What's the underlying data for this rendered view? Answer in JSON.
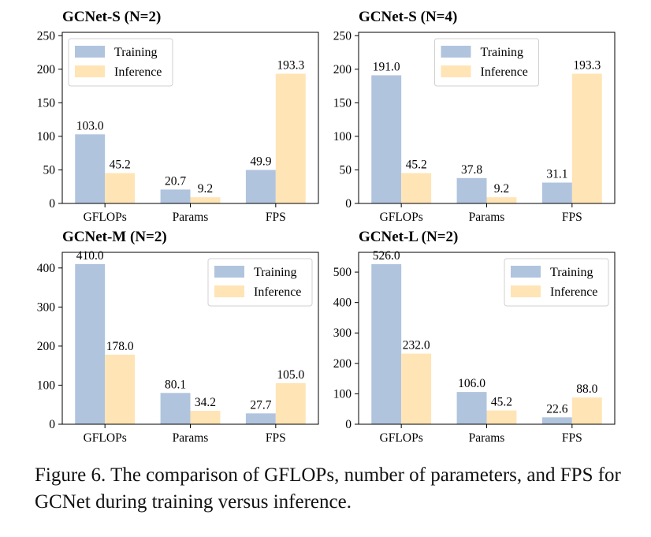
{
  "caption": "Figure 6. The comparison of GFLOPs, number of parameters, and FPS for GCNet during training versus inference.",
  "colors": {
    "training": "#b0c4de",
    "inference": "#ffe4b5"
  },
  "chart_data": [
    {
      "type": "bar",
      "title": "GCNet-S (N=2)",
      "categories": [
        "GFLOPs",
        "Params",
        "FPS"
      ],
      "series": [
        {
          "name": "Training",
          "values": [
            103.0,
            20.7,
            49.9
          ]
        },
        {
          "name": "Inference",
          "values": [
            45.2,
            9.2,
            193.3
          ]
        }
      ],
      "value_labels": [
        [
          "103.0",
          "20.7",
          "49.9"
        ],
        [
          "45.2",
          "9.2",
          "193.3"
        ]
      ],
      "ylim": [
        0,
        255
      ],
      "yticks": [
        0,
        50,
        100,
        150,
        200,
        250
      ],
      "legend": "top-left"
    },
    {
      "type": "bar",
      "title": "GCNet-S (N=4)",
      "categories": [
        "GFLOPs",
        "Params",
        "FPS"
      ],
      "series": [
        {
          "name": "Training",
          "values": [
            191.0,
            37.8,
            31.1
          ]
        },
        {
          "name": "Inference",
          "values": [
            45.2,
            9.2,
            193.3
          ]
        }
      ],
      "value_labels": [
        [
          "191.0",
          "37.8",
          "31.1"
        ],
        [
          "45.2",
          "9.2",
          "193.3"
        ]
      ],
      "ylim": [
        0,
        255
      ],
      "yticks": [
        0,
        50,
        100,
        150,
        200,
        250
      ],
      "legend": "top-center"
    },
    {
      "type": "bar",
      "title": "GCNet-M (N=2)",
      "categories": [
        "GFLOPs",
        "Params",
        "FPS"
      ],
      "series": [
        {
          "name": "Training",
          "values": [
            410.0,
            80.1,
            27.7
          ]
        },
        {
          "name": "Inference",
          "values": [
            178.0,
            34.2,
            105.0
          ]
        }
      ],
      "value_labels": [
        [
          "410.0",
          "80.1",
          "27.7"
        ],
        [
          "178.0",
          "34.2",
          "105.0"
        ]
      ],
      "ylim": [
        0,
        440
      ],
      "yticks": [
        0,
        100,
        200,
        300,
        400
      ],
      "legend": "top-right"
    },
    {
      "type": "bar",
      "title": "GCNet-L (N=2)",
      "categories": [
        "GFLOPs",
        "Params",
        "FPS"
      ],
      "series": [
        {
          "name": "Training",
          "values": [
            526.0,
            106.0,
            22.6
          ]
        },
        {
          "name": "Inference",
          "values": [
            232.0,
            45.2,
            88.0
          ]
        }
      ],
      "value_labels": [
        [
          "526.0",
          "106.0",
          "22.6"
        ],
        [
          "232.0",
          "45.2",
          "88.0"
        ]
      ],
      "ylim": [
        0,
        565
      ],
      "yticks": [
        0,
        100,
        200,
        300,
        400,
        500
      ],
      "legend": "top-right"
    }
  ]
}
